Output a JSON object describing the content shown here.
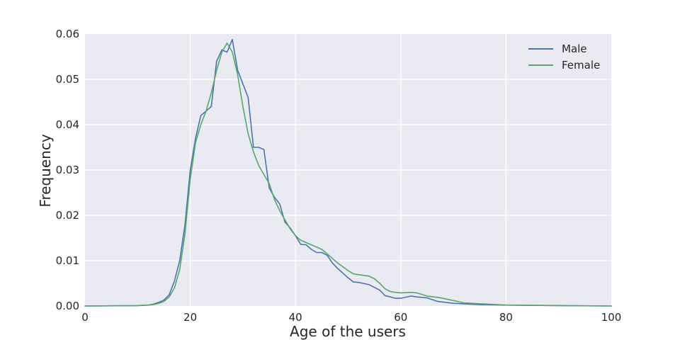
{
  "chart_data": {
    "type": "line",
    "title": "",
    "xlabel": "Age of the users",
    "ylabel": "Frequency",
    "xlim": [
      0,
      100
    ],
    "ylim": [
      0,
      0.06
    ],
    "xticks": [
      "0",
      "20",
      "40",
      "60",
      "80",
      "100"
    ],
    "yticks": [
      "0.00",
      "0.01",
      "0.02",
      "0.03",
      "0.04",
      "0.05",
      "0.06"
    ],
    "grid": true,
    "legend_position": "top-right",
    "series": [
      {
        "name": "Male",
        "color": "#4c72b0",
        "points": [
          [
            0,
            0
          ],
          [
            10,
            0.0001
          ],
          [
            12,
            0.0002
          ],
          [
            13,
            0.0004
          ],
          [
            14,
            0.0008
          ],
          [
            15,
            0.0013
          ],
          [
            16,
            0.0025
          ],
          [
            17,
            0.0055
          ],
          [
            18,
            0.01
          ],
          [
            19,
            0.018
          ],
          [
            20,
            0.03
          ],
          [
            21,
            0.037
          ],
          [
            22,
            0.042
          ],
          [
            23,
            0.043
          ],
          [
            24,
            0.044
          ],
          [
            25,
            0.054
          ],
          [
            26,
            0.0565
          ],
          [
            27,
            0.056
          ],
          [
            28,
            0.0588
          ],
          [
            29,
            0.052
          ],
          [
            30,
            0.049
          ],
          [
            31,
            0.046
          ],
          [
            32,
            0.035
          ],
          [
            33,
            0.035
          ],
          [
            34,
            0.0345
          ],
          [
            35,
            0.026
          ],
          [
            36,
            0.024
          ],
          [
            37,
            0.0225
          ],
          [
            38,
            0.0185
          ],
          [
            39,
            0.0172
          ],
          [
            40,
            0.0155
          ],
          [
            41,
            0.0136
          ],
          [
            42,
            0.0135
          ],
          [
            43,
            0.0125
          ],
          [
            44,
            0.0118
          ],
          [
            45,
            0.0118
          ],
          [
            46,
            0.0112
          ],
          [
            47,
            0.0095
          ],
          [
            48,
            0.0083
          ],
          [
            50,
            0.0062
          ],
          [
            51,
            0.0053
          ],
          [
            52,
            0.0052
          ],
          [
            54,
            0.0047
          ],
          [
            56,
            0.0035
          ],
          [
            57,
            0.0023
          ],
          [
            58,
            0.002
          ],
          [
            59,
            0.0017
          ],
          [
            60,
            0.0017
          ],
          [
            62,
            0.0022
          ],
          [
            63,
            0.002
          ],
          [
            65,
            0.0018
          ],
          [
            67,
            0.001
          ],
          [
            70,
            0.0006
          ],
          [
            75,
            0.0003
          ],
          [
            80,
            0.0002
          ],
          [
            90,
            0.0001
          ],
          [
            100,
            0
          ]
        ]
      },
      {
        "name": "Female",
        "color": "#55a868",
        "points": [
          [
            0,
            0
          ],
          [
            10,
            0.0001
          ],
          [
            12,
            0.0002
          ],
          [
            13,
            0.0003
          ],
          [
            14,
            0.0006
          ],
          [
            15,
            0.001
          ],
          [
            16,
            0.002
          ],
          [
            17,
            0.004
          ],
          [
            18,
            0.008
          ],
          [
            19,
            0.016
          ],
          [
            20,
            0.028
          ],
          [
            21,
            0.036
          ],
          [
            22,
            0.04
          ],
          [
            23,
            0.043
          ],
          [
            24,
            0.047
          ],
          [
            25,
            0.052
          ],
          [
            26,
            0.056
          ],
          [
            27,
            0.058
          ],
          [
            28,
            0.056
          ],
          [
            29,
            0.051
          ],
          [
            30,
            0.044
          ],
          [
            31,
            0.038
          ],
          [
            32,
            0.034
          ],
          [
            33,
            0.031
          ],
          [
            34,
            0.029
          ],
          [
            35,
            0.027
          ],
          [
            36,
            0.0235
          ],
          [
            37,
            0.021
          ],
          [
            38,
            0.019
          ],
          [
            39,
            0.017
          ],
          [
            40,
            0.0155
          ],
          [
            41,
            0.0145
          ],
          [
            42,
            0.014
          ],
          [
            43,
            0.0135
          ],
          [
            44,
            0.013
          ],
          [
            45,
            0.0125
          ],
          [
            46,
            0.0115
          ],
          [
            47,
            0.0105
          ],
          [
            48,
            0.0095
          ],
          [
            50,
            0.0078
          ],
          [
            51,
            0.0071
          ],
          [
            52,
            0.0069
          ],
          [
            54,
            0.0066
          ],
          [
            55,
            0.006
          ],
          [
            56,
            0.005
          ],
          [
            57,
            0.0038
          ],
          [
            58,
            0.0032
          ],
          [
            59,
            0.003
          ],
          [
            60,
            0.0029
          ],
          [
            62,
            0.003
          ],
          [
            63,
            0.0029
          ],
          [
            65,
            0.0022
          ],
          [
            67,
            0.0019
          ],
          [
            68,
            0.0017
          ],
          [
            70,
            0.0012
          ],
          [
            72,
            0.0007
          ],
          [
            75,
            0.0005
          ],
          [
            80,
            0.0002
          ],
          [
            90,
            0.0001
          ],
          [
            100,
            0
          ]
        ]
      }
    ]
  }
}
